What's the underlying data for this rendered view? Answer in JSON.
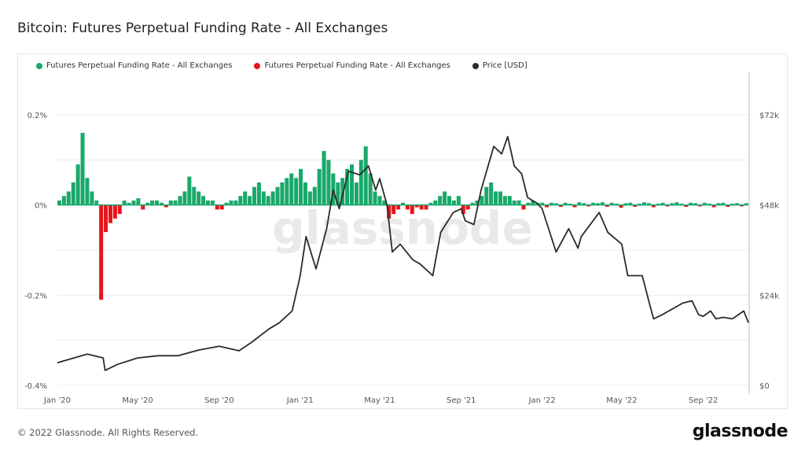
{
  "title": "Bitcoin: Futures Perpetual Funding Rate - All Exchanges",
  "footer": "© 2022 Glassnode. All Rights Reserved.",
  "logo": "glassnode",
  "watermark": "glassnode",
  "chart_data": {
    "type": "bar+line",
    "title": "Bitcoin: Futures Perpetual Funding Rate - All Exchanges",
    "legend_placement": "top-left",
    "grid": true,
    "legend": [
      {
        "label": "Futures Perpetual Funding Rate - All Exchanges",
        "color": "#1aa86b"
      },
      {
        "label": "Futures Perpetual Funding Rate - All Exchanges",
        "color": "#e8141b"
      },
      {
        "label": "Price [USD]",
        "color": "#2b2b2b"
      }
    ],
    "x_range": [
      "2020-01-01",
      "2022-11-08"
    ],
    "x_ticks": [
      {
        "date": "2020-01-01",
        "label": "Jan '20"
      },
      {
        "date": "2020-05-01",
        "label": "May '20"
      },
      {
        "date": "2020-09-01",
        "label": "Sep '20"
      },
      {
        "date": "2021-01-01",
        "label": "Jan '21"
      },
      {
        "date": "2021-05-01",
        "label": "May '21"
      },
      {
        "date": "2021-09-01",
        "label": "Sep '21"
      },
      {
        "date": "2022-01-01",
        "label": "Jan '22"
      },
      {
        "date": "2022-05-01",
        "label": "May '22"
      },
      {
        "date": "2022-09-01",
        "label": "Sep '22"
      }
    ],
    "y_left": {
      "unit": "%",
      "range": [
        -0.4,
        0.2
      ],
      "ticks": [
        {
          "v": 0.2,
          "label": "0.2%"
        },
        {
          "v": 0,
          "label": "0%"
        },
        {
          "v": -0.2,
          "label": "-0.2%"
        },
        {
          "v": -0.4,
          "label": "-0.4%"
        }
      ]
    },
    "y_right": {
      "unit": "USD",
      "range": [
        0,
        72000
      ],
      "ticks": [
        {
          "v": 72000,
          "label": "$72k"
        },
        {
          "v": 48000,
          "label": "$48k"
        },
        {
          "v": 24000,
          "label": "$24k"
        },
        {
          "v": 0,
          "label": "$0"
        }
      ]
    },
    "funding_rate": {
      "start": "2020-01-01",
      "step_days": 7,
      "positive_color": "#1aa86b",
      "negative_color": "#e8141b",
      "values": [
        0.01,
        0.02,
        0.03,
        0.05,
        0.09,
        0.16,
        0.06,
        0.03,
        0.01,
        -0.21,
        -0.06,
        -0.04,
        -0.03,
        -0.02,
        0.01,
        0.005,
        0.01,
        0.015,
        -0.01,
        0.005,
        0.01,
        0.01,
        0.005,
        -0.005,
        0.01,
        0.01,
        0.02,
        0.03,
        0.063,
        0.04,
        0.03,
        0.02,
        0.01,
        0.01,
        -0.01,
        -0.01,
        0.005,
        0.01,
        0.01,
        0.02,
        0.03,
        0.02,
        0.04,
        0.05,
        0.03,
        0.02,
        0.03,
        0.04,
        0.05,
        0.06,
        0.07,
        0.06,
        0.08,
        0.05,
        0.03,
        0.04,
        0.08,
        0.12,
        0.1,
        0.07,
        0.05,
        0.06,
        0.08,
        0.09,
        0.05,
        0.1,
        0.13,
        0.07,
        0.03,
        0.02,
        0.01,
        -0.03,
        -0.02,
        -0.01,
        0.005,
        -0.01,
        -0.02,
        -0.005,
        -0.01,
        -0.01,
        0.005,
        0.01,
        0.02,
        0.03,
        0.02,
        0.01,
        0.02,
        -0.02,
        -0.01,
        0.005,
        0.01,
        0.02,
        0.04,
        0.05,
        0.03,
        0.03,
        0.02,
        0.02,
        0.01,
        0.01,
        -0.01,
        0.005,
        0.01,
        0.005,
        0.005,
        -0.005,
        0.005,
        0.004,
        -0.004,
        0.005,
        0.003,
        -0.005,
        0.006,
        0.004,
        -0.003,
        0.005,
        0.004,
        0.006,
        -0.004,
        0.005,
        0.003,
        -0.006,
        0.004,
        0.005,
        -0.004,
        0.003,
        0.006,
        0.004,
        -0.005,
        0.003,
        0.005,
        -0.003,
        0.004,
        0.006,
        0.003,
        -0.004,
        0.005,
        0.004,
        -0.003,
        0.005,
        0.003,
        -0.005,
        0.004,
        0.005,
        -0.004,
        0.003,
        0.004,
        -0.003,
        0.004
      ]
    },
    "price": {
      "dates": [
        "2020-01-01",
        "2020-02-15",
        "2020-03-10",
        "2020-03-13",
        "2020-04-01",
        "2020-05-01",
        "2020-06-01",
        "2020-07-01",
        "2020-08-01",
        "2020-09-01",
        "2020-10-01",
        "2020-10-20",
        "2020-11-15",
        "2020-12-01",
        "2020-12-20",
        "2021-01-01",
        "2021-01-10",
        "2021-01-25",
        "2021-02-10",
        "2021-02-20",
        "2021-03-01",
        "2021-03-15",
        "2021-04-01",
        "2021-04-14",
        "2021-04-25",
        "2021-05-01",
        "2021-05-12",
        "2021-05-20",
        "2021-06-01",
        "2021-06-20",
        "2021-07-01",
        "2021-07-20",
        "2021-08-01",
        "2021-08-20",
        "2021-09-01",
        "2021-09-07",
        "2021-09-20",
        "2021-10-01",
        "2021-10-20",
        "2021-11-01",
        "2021-11-10",
        "2021-11-20",
        "2021-12-01",
        "2021-12-10",
        "2021-12-25",
        "2022-01-01",
        "2022-01-22",
        "2022-02-10",
        "2022-02-24",
        "2022-03-01",
        "2022-03-28",
        "2022-04-10",
        "2022-05-01",
        "2022-05-10",
        "2022-06-01",
        "2022-06-13",
        "2022-06-18",
        "2022-07-01",
        "2022-08-01",
        "2022-08-15",
        "2022-08-25",
        "2022-09-01",
        "2022-09-12",
        "2022-09-20",
        "2022-10-01",
        "2022-10-15",
        "2022-11-01",
        "2022-11-08"
      ],
      "values": [
        6000,
        8300,
        7300,
        4000,
        5600,
        7300,
        7900,
        7900,
        9400,
        10400,
        9200,
        11500,
        15000,
        16700,
        19800,
        29000,
        39600,
        31000,
        41700,
        52000,
        47000,
        57000,
        56000,
        58400,
        52000,
        55000,
        48000,
        35500,
        37600,
        33400,
        32300,
        29200,
        40700,
        46000,
        47000,
        43800,
        42800,
        52000,
        63600,
        61600,
        66200,
        58400,
        56300,
        50000,
        48400,
        47000,
        35500,
        41700,
        36500,
        39600,
        46000,
        40700,
        37600,
        29200,
        29200,
        20900,
        17700,
        18800,
        21900,
        22500,
        18800,
        18400,
        19800,
        17700,
        18100,
        17700,
        19800,
        16700
      ]
    }
  }
}
